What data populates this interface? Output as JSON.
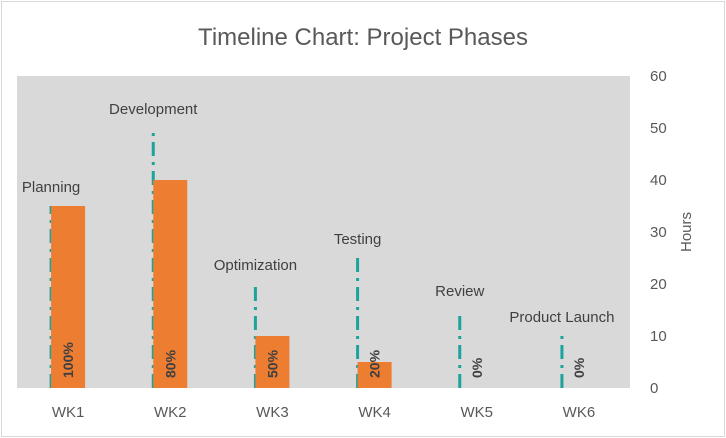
{
  "chart_data": {
    "type": "bar",
    "title": "Timeline Chart: Project Phases",
    "xlabel": "",
    "ylabel": "Hours",
    "ylim": [
      0,
      60
    ],
    "yticks": [
      0,
      10,
      20,
      30,
      40,
      50,
      60
    ],
    "categories": [
      "WK1",
      "WK2",
      "WK3",
      "WK4",
      "WK5",
      "WK6"
    ],
    "phases": [
      "Planning",
      "Development",
      "Optimization",
      "Testing",
      "Review",
      "Product Launch"
    ],
    "series": [
      {
        "values": [
          35,
          40,
          10,
          5,
          0,
          0
        ],
        "color": "#ED7D31"
      }
    ],
    "milestone_heights": [
      35,
      50,
      20,
      25,
      15,
      10
    ],
    "milestone_color": "#1BA39C",
    "completion_labels": [
      "100%",
      "80%",
      "50%",
      "20%",
      "0%",
      "0%"
    ],
    "y_axis_side": "right",
    "plot_background": "#D9D9D9",
    "grid": false,
    "legend": "none"
  }
}
